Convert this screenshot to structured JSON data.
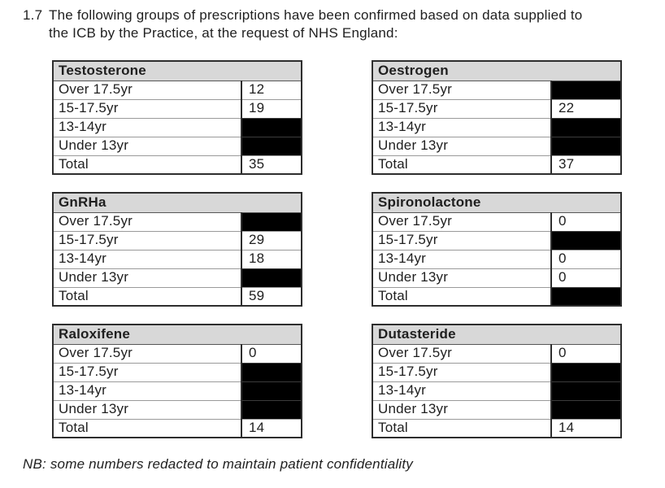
{
  "paragraph": {
    "number": "1.7",
    "line1": "The following groups of prescriptions have been confirmed based on data supplied to",
    "line2": "the ICB by the Practice, at the request of NHS England:"
  },
  "row_labels": [
    "Over 17.5yr",
    "15-17.5yr",
    "13-14yr",
    "Under 13yr",
    "Total"
  ],
  "tables": [
    {
      "title": "Testosterone",
      "values": [
        "12",
        "19",
        null,
        null,
        "35"
      ]
    },
    {
      "title": "Oestrogen",
      "values": [
        null,
        "22",
        null,
        null,
        "37"
      ]
    },
    {
      "title": "GnRHa",
      "values": [
        null,
        "29",
        "18",
        null,
        "59"
      ]
    },
    {
      "title": "Spironolactone",
      "values": [
        "0",
        null,
        "0",
        "0",
        null
      ]
    },
    {
      "title": "Raloxifene",
      "values": [
        "0",
        null,
        null,
        null,
        "14"
      ]
    },
    {
      "title": "Dutasteride",
      "values": [
        "0",
        null,
        null,
        null,
        "14"
      ]
    }
  ],
  "redaction": {
    "style": "solid-black-cell",
    "color": "#000000"
  },
  "note": "NB: some numbers redacted to maintain patient confidentiality",
  "colors": {
    "page_bg": "#ffffff",
    "table_header_bg": "#d8d8d8",
    "border_dark": "#2e2e2e",
    "border_light": "#9a9a9a",
    "text": "#1f1f1f",
    "redacted": "#000000"
  }
}
